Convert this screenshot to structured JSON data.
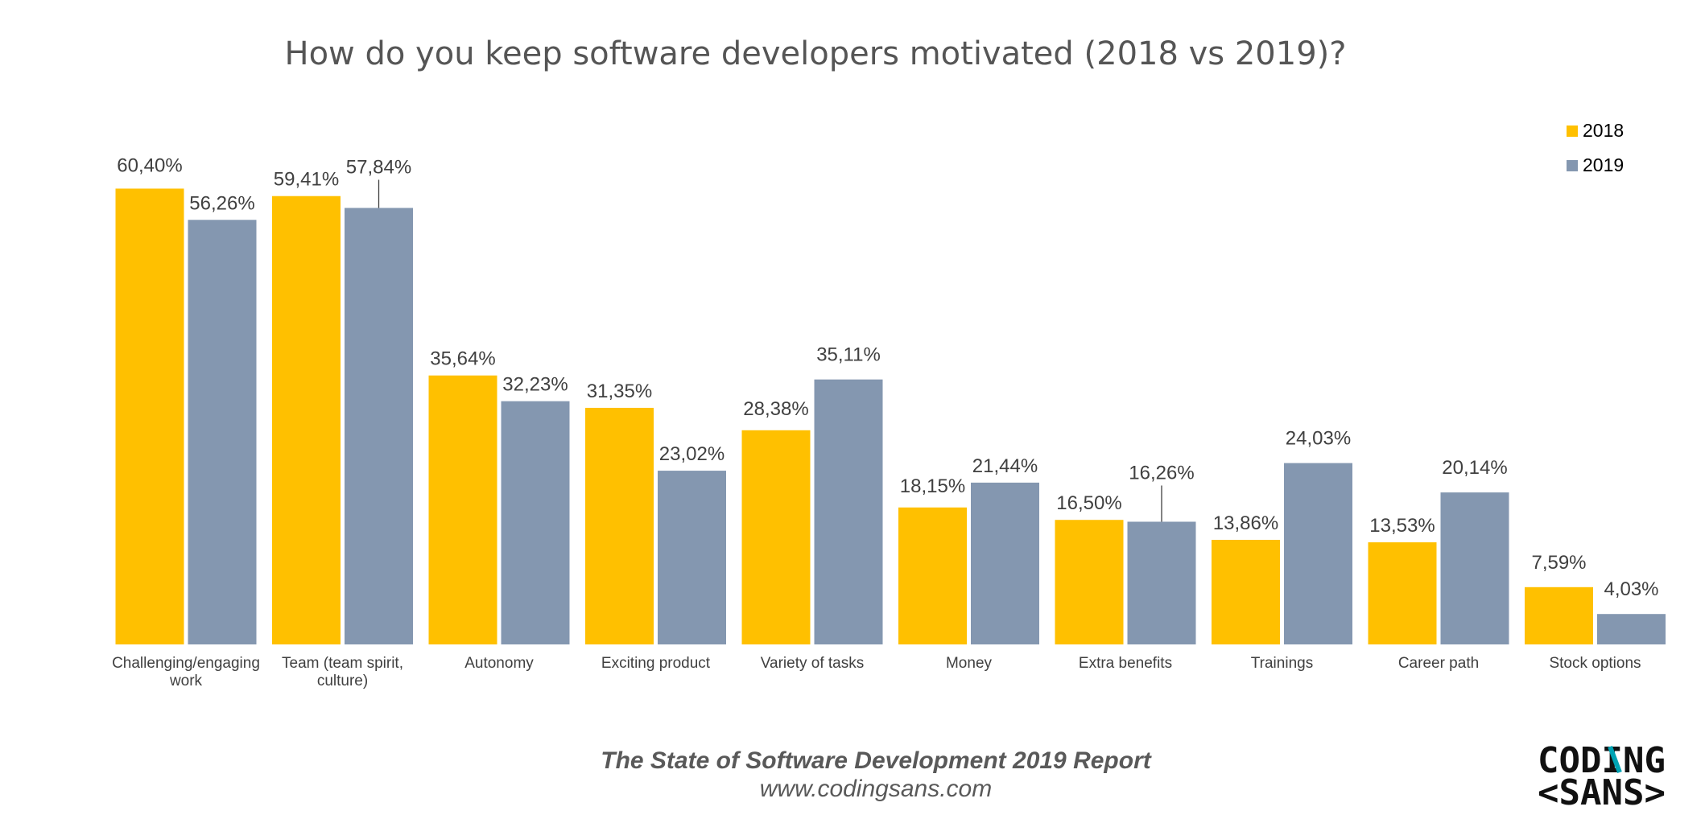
{
  "chart_data": {
    "type": "bar",
    "title": "How do you keep software developers motivated (2018 vs 2019)?",
    "categories": [
      "Challenging/engaging work",
      "Team (team spirit, culture)",
      "Autonomy",
      "Exciting product",
      "Variety of tasks",
      "Money",
      "Extra benefits",
      "Trainings",
      "Career path",
      "Stock options"
    ],
    "category_lines": [
      [
        "Challenging/engaging",
        "work"
      ],
      [
        "Team (team spirit,",
        "culture)"
      ],
      [
        "Autonomy"
      ],
      [
        "Exciting product"
      ],
      [
        "Variety of tasks"
      ],
      [
        "Money"
      ],
      [
        "Extra benefits"
      ],
      [
        "Trainings"
      ],
      [
        "Career path"
      ],
      [
        "Stock options"
      ]
    ],
    "series": [
      {
        "name": "2018",
        "color": "#FFC000",
        "values": [
          60.4,
          59.41,
          35.64,
          31.35,
          28.38,
          18.15,
          16.5,
          13.86,
          13.53,
          7.59
        ],
        "labels": [
          "60,40%",
          "59,41%",
          "35,64%",
          "31,35%",
          "28,38%",
          "18,15%",
          "16,50%",
          "13,86%",
          "13,53%",
          "7,59%"
        ]
      },
      {
        "name": "2019",
        "color": "#8497B0",
        "values": [
          56.26,
          57.84,
          32.23,
          23.02,
          35.11,
          21.44,
          16.26,
          24.03,
          20.14,
          4.03
        ],
        "labels": [
          "56,26%",
          "57,84%",
          "32,23%",
          "23,02%",
          "35,11%",
          "21,44%",
          "16,26%",
          "24,03%",
          "20,14%",
          "4,03%"
        ]
      }
    ],
    "ylim": [
      0,
      65
    ],
    "grid": false,
    "legend_position": "top-right"
  },
  "footer": {
    "report_title": "The State of Software Development 2019 Report",
    "url": "www.codingsans.com"
  },
  "logo": {
    "line1": "CODING",
    "line2": "<SANS>",
    "accent_color": "#00A3B4"
  }
}
